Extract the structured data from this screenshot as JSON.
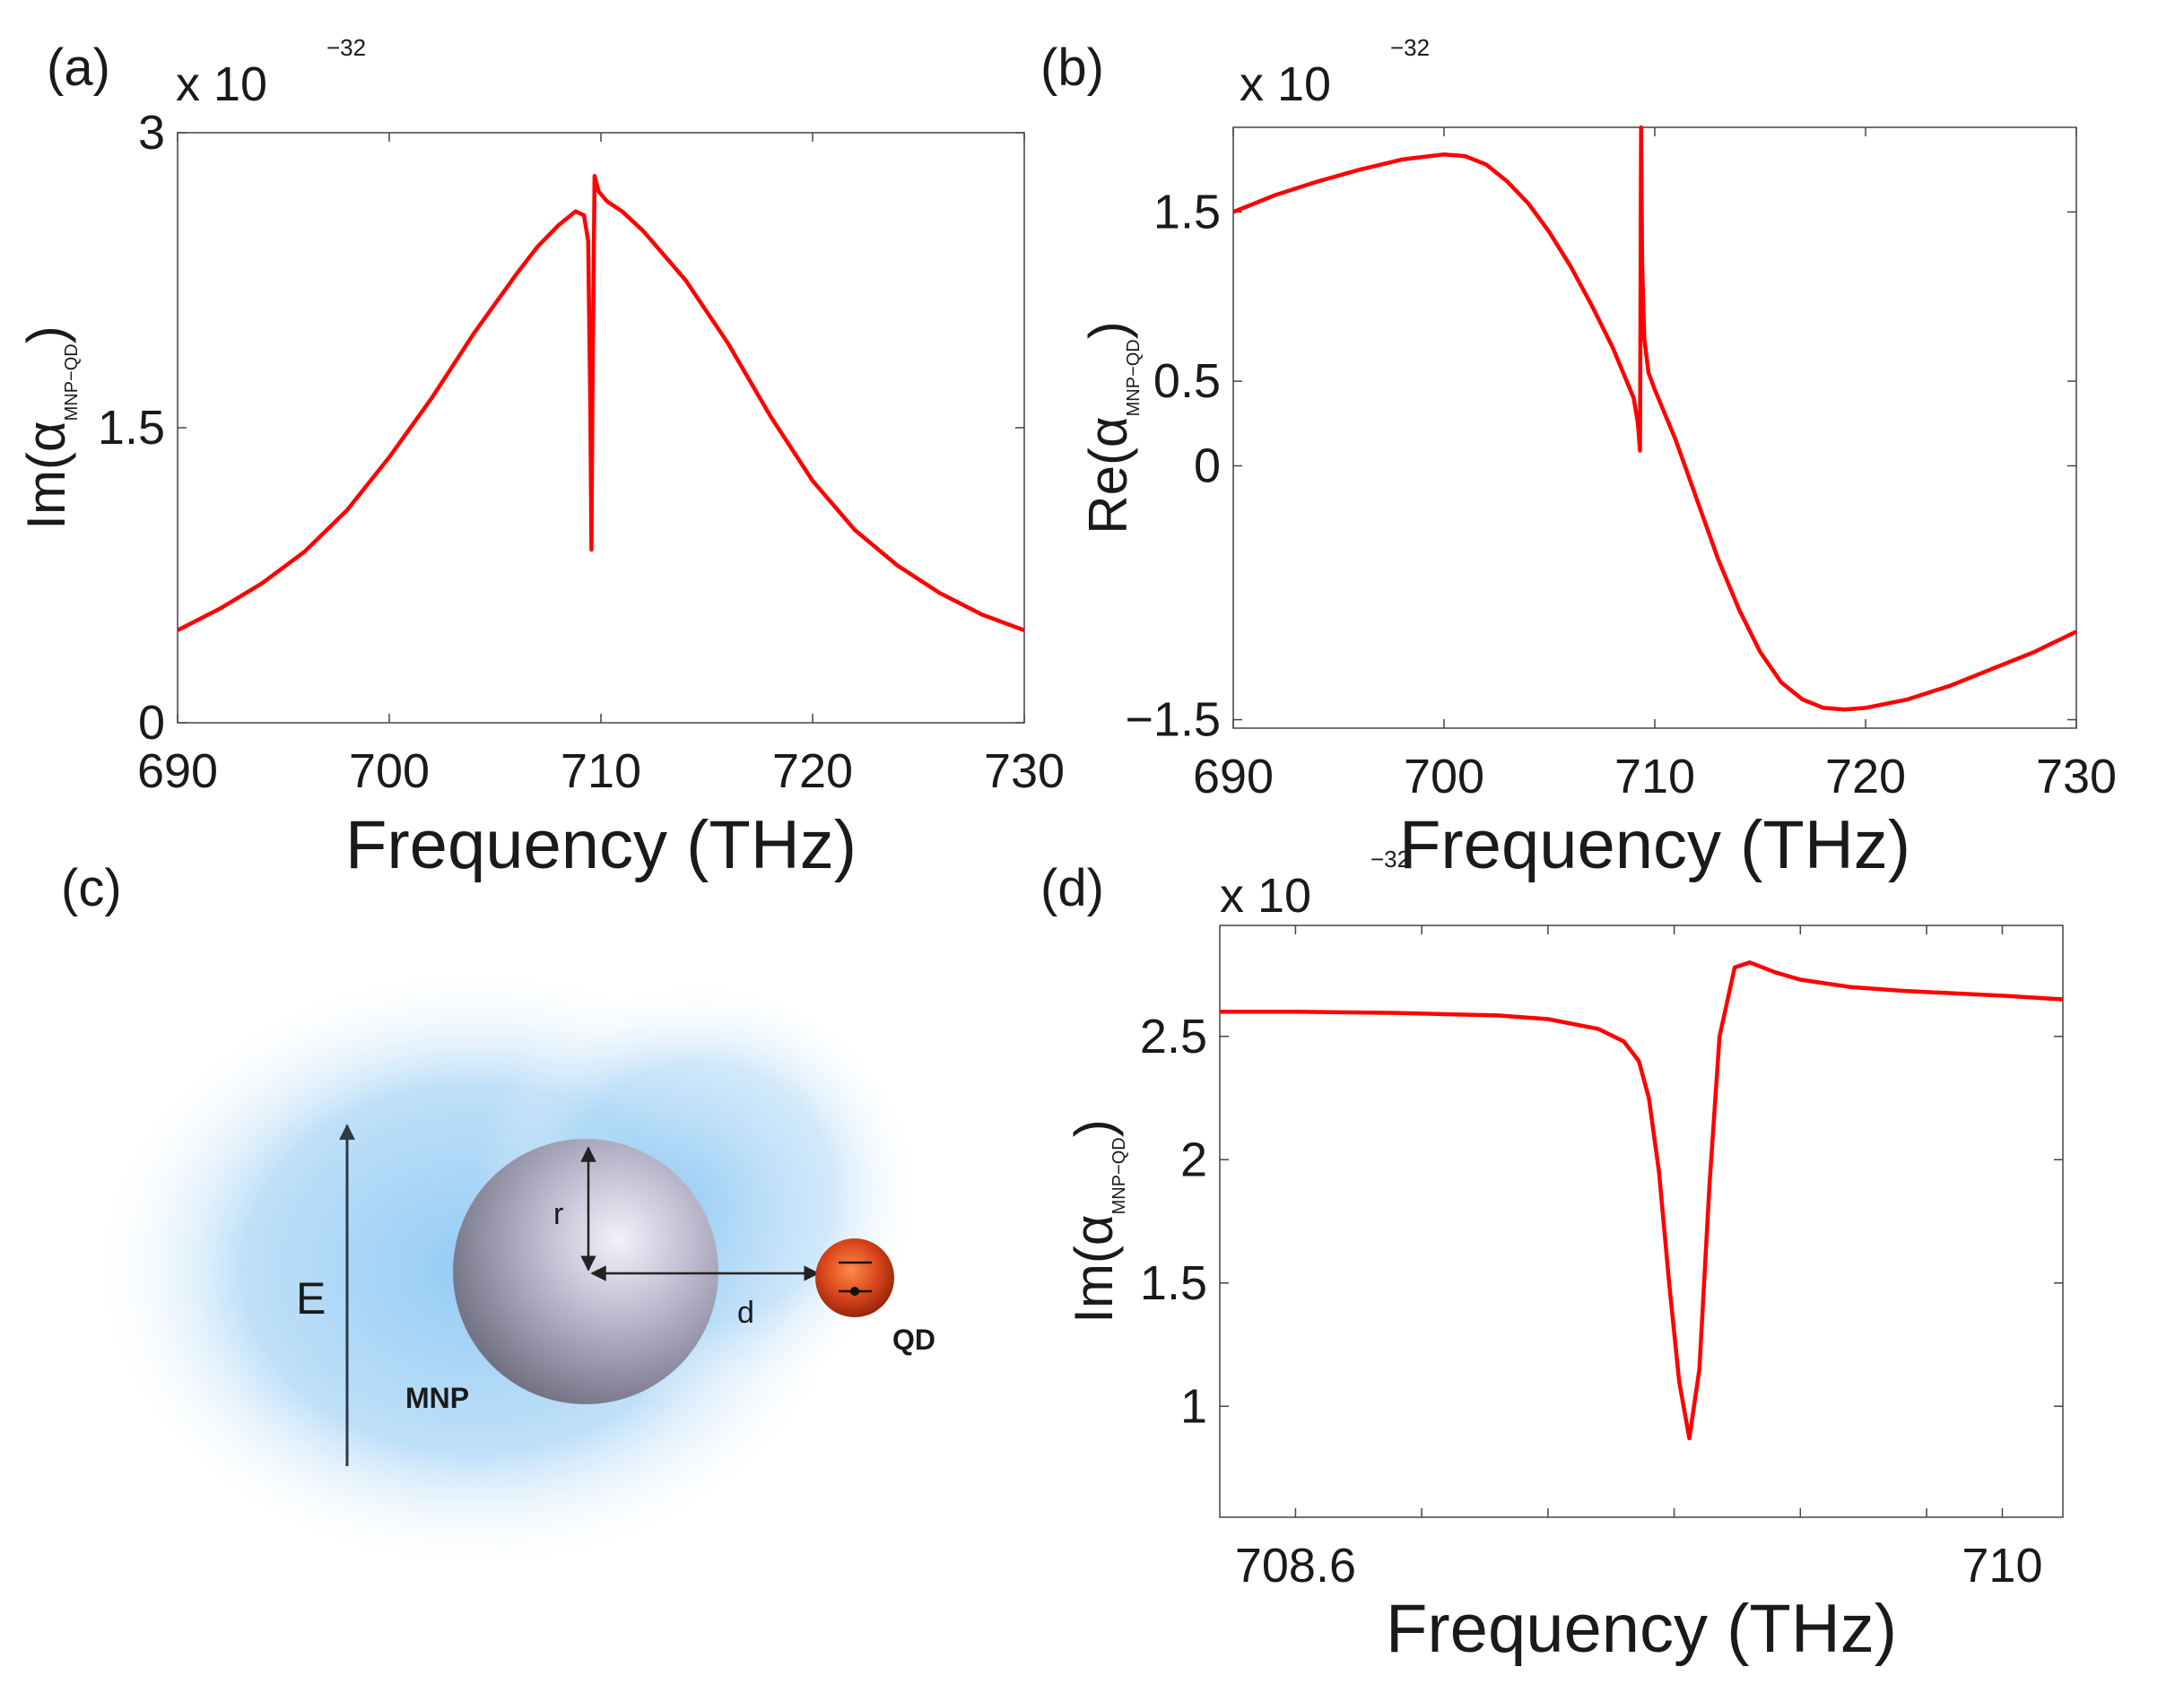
{
  "figure": {
    "diagram": {
      "field_label": "E",
      "radius_label": "r",
      "distance_label": "d",
      "mnp_label": "MNP",
      "qd_label": "QD"
    }
  },
  "chart_data": [
    {
      "id": "a",
      "panel_label": "(a)",
      "type": "line",
      "xlabel": "Frequency (THz)",
      "ylabel_main": "Im(α",
      "ylabel_sub": "MNP−QD",
      "ylabel_close": ")",
      "exponent_prefix": "x 10",
      "exponent": "−32",
      "xlim": [
        690,
        730
      ],
      "ylim": [
        0,
        3
      ],
      "xticks": [
        690,
        700,
        710,
        720,
        730
      ],
      "xtick_labels": [
        "690",
        "700",
        "710",
        "720",
        "730"
      ],
      "yticks": [
        0,
        1.5,
        3
      ],
      "ytick_labels": [
        "0",
        "1.5",
        "3"
      ],
      "grid": false,
      "series": [
        {
          "color": "#ff0000",
          "x": [
            690,
            692,
            694,
            696,
            698,
            700,
            702,
            704,
            706,
            707,
            708,
            708.8,
            709.2,
            709.4,
            709.5,
            709.55,
            709.6,
            709.7,
            709.9,
            710.3,
            711,
            712,
            714,
            716,
            718,
            720,
            722,
            724,
            726,
            728,
            730
          ],
          "y": [
            0.47,
            0.58,
            0.71,
            0.87,
            1.08,
            1.35,
            1.65,
            1.98,
            2.28,
            2.42,
            2.53,
            2.6,
            2.58,
            2.45,
            1.6,
            0.88,
            1.7,
            2.78,
            2.7,
            2.65,
            2.6,
            2.5,
            2.25,
            1.93,
            1.56,
            1.23,
            0.98,
            0.8,
            0.66,
            0.55,
            0.47
          ]
        }
      ]
    },
    {
      "id": "b",
      "panel_label": "(b)",
      "type": "line",
      "xlabel": "Frequency (THz)",
      "ylabel_main": "Re(α",
      "ylabel_sub": "MNP−QD",
      "ylabel_close": ")",
      "exponent_prefix": "x 10",
      "exponent": "−32",
      "xlim": [
        690,
        730
      ],
      "ylim": [
        -1.55,
        2.0
      ],
      "xticks": [
        690,
        700,
        710,
        720,
        730
      ],
      "xtick_labels": [
        "690",
        "700",
        "710",
        "720",
        "730"
      ],
      "yticks": [
        -1.5,
        0,
        0.5,
        1.5
      ],
      "ytick_labels": [
        "−1.5",
        "0",
        "0.5",
        "1.5"
      ],
      "grid": false,
      "series": [
        {
          "color": "#ff0000",
          "x": [
            690,
            692,
            694,
            696,
            698,
            700,
            701,
            702,
            703,
            704,
            705,
            706,
            707,
            708,
            708.6,
            709,
            709.2,
            709.3,
            709.35,
            709.4,
            709.5,
            709.7,
            710,
            711,
            712,
            713,
            714,
            715,
            716,
            717,
            718,
            719,
            720,
            722,
            724,
            726,
            728,
            730
          ],
          "y": [
            1.5,
            1.6,
            1.68,
            1.75,
            1.81,
            1.84,
            1.83,
            1.78,
            1.68,
            1.55,
            1.38,
            1.18,
            0.95,
            0.7,
            0.52,
            0.4,
            0.25,
            0.09,
            2.0,
            1.2,
            0.75,
            0.55,
            0.45,
            0.15,
            -0.2,
            -0.55,
            -0.85,
            -1.1,
            -1.28,
            -1.38,
            -1.43,
            -1.44,
            -1.43,
            -1.38,
            -1.3,
            -1.2,
            -1.1,
            -0.98
          ]
        }
      ]
    },
    {
      "id": "d",
      "panel_label": "(d)",
      "type": "line",
      "xlabel": "Frequency (THz)",
      "ylabel_main": "Im(α",
      "ylabel_sub": "MNP−QD",
      "ylabel_close": ")",
      "exponent_prefix": "x 10",
      "exponent": "−32",
      "xlim": [
        708.45,
        710.12
      ],
      "ylim": [
        0.55,
        2.95
      ],
      "xticks": [
        708.6,
        708.85,
        709.1,
        709.35,
        709.6,
        709.85,
        710
      ],
      "xtick_labels": [
        "708.6",
        "",
        "",
        "",
        "",
        "",
        "710"
      ],
      "yticks": [
        1,
        1.5,
        2,
        2.5
      ],
      "ytick_labels": [
        "1",
        "1.5",
        "2",
        "2.5"
      ],
      "grid": false,
      "series": [
        {
          "color": "#ff0000",
          "x": [
            708.45,
            708.6,
            708.8,
            709.0,
            709.1,
            709.2,
            709.25,
            709.28,
            709.3,
            709.32,
            709.34,
            709.36,
            709.38,
            709.4,
            709.42,
            709.44,
            709.47,
            709.5,
            709.55,
            709.6,
            709.7,
            709.8,
            709.9,
            710.0,
            710.12
          ],
          "y": [
            2.6,
            2.6,
            2.595,
            2.585,
            2.57,
            2.53,
            2.48,
            2.4,
            2.25,
            1.95,
            1.5,
            1.1,
            0.87,
            1.15,
            1.9,
            2.5,
            2.78,
            2.8,
            2.76,
            2.73,
            2.7,
            2.685,
            2.675,
            2.665,
            2.65
          ]
        }
      ]
    }
  ]
}
